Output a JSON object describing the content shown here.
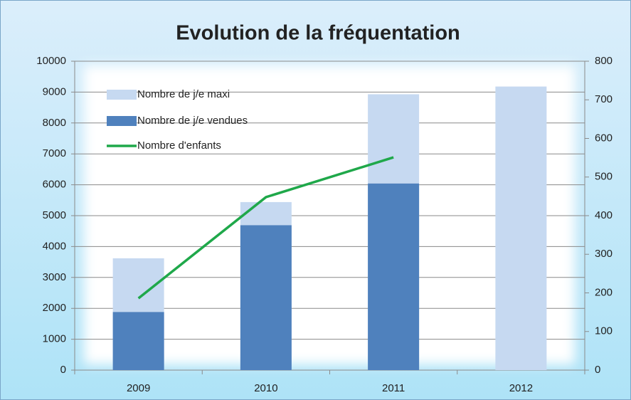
{
  "chart_data": {
    "type": "bar",
    "title": "Evolution de la fréquentation",
    "categories": [
      "2009",
      "2010",
      "2011",
      "2012"
    ],
    "series": [
      {
        "name": "Nombre de j/e maxi",
        "color": "#c6d9f1",
        "values": [
          3620,
          5440,
          8930,
          9180
        ]
      },
      {
        "name": "Nombre de j/e vendues",
        "color": "#4f81bd",
        "values": [
          1880,
          4690,
          6040,
          null
        ]
      },
      {
        "name": "Nombre d'enfants",
        "type": "line",
        "axis": "y2",
        "color": "#1fa84a",
        "values": [
          186,
          448,
          551,
          null
        ]
      }
    ],
    "ylim": [
      0,
      10000
    ],
    "yticks": [
      0,
      1000,
      2000,
      3000,
      4000,
      5000,
      6000,
      7000,
      8000,
      9000,
      10000
    ],
    "y2lim": [
      0,
      800
    ],
    "y2ticks": [
      0,
      100,
      200,
      300,
      400,
      500,
      600,
      700,
      800
    ],
    "grid": true,
    "legend": "top-left"
  }
}
